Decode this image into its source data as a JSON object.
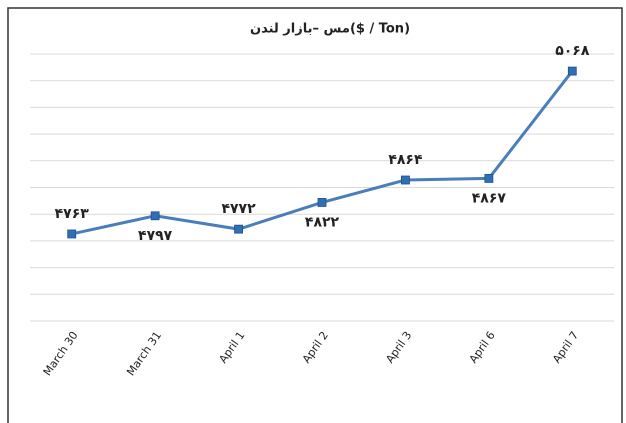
{
  "chart_data": {
    "type": "line",
    "title": "مس –بازار لندن($ / Ton)",
    "categories": [
      "March 30",
      "March 31",
      "April 1",
      "April 2",
      "April 3",
      "April 6",
      "April 7"
    ],
    "series": [
      {
        "name": "مس",
        "color": "#4a7ebb",
        "values": [
          4763,
          4797,
          4772,
          4822,
          4864,
          4867,
          5068
        ],
        "value_labels": [
          "۴۷۶۳",
          "۴۷۹۷",
          "۴۷۷۲",
          "۴۸۲۲",
          "۴۸۶۴",
          "۴۸۶۷",
          "۵۰۶۸"
        ]
      }
    ],
    "ylim": [
      4600,
      5100
    ],
    "yticks": [
      4600,
      4650,
      4700,
      4750,
      4800,
      4850,
      4900,
      4950,
      5000,
      5050,
      5100
    ],
    "grid": true
  }
}
